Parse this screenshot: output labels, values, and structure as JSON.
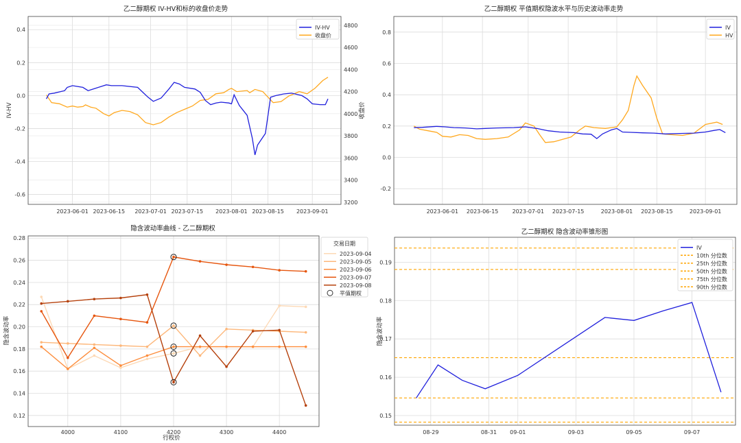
{
  "colors": {
    "iv": "#1f1fdc",
    "hv": "#ffa81e",
    "close": "#ffa81e",
    "left_axis": "#2c7bb6",
    "right_axis": "#d62728",
    "orange": "#ffa500",
    "curve_0904": "#fdd9b5",
    "curve_0905": "#fdb77a",
    "curve_0906": "#fd8d3c",
    "curve_0907": "#e6550d",
    "curve_0908": "#b5400b"
  },
  "chart_data": [
    {
      "type": "line",
      "title": "乙二醇期权 IV-HV和标的收盘价走势",
      "xlabel": "",
      "ylabel": "IV-HV",
      "y2label": "收盘价",
      "xlim": [
        "2023-05-15",
        "2023-09-12"
      ],
      "ylim": [
        -0.66,
        0.48
      ],
      "y2lim": [
        3180,
        4880
      ],
      "grid": true,
      "legend_position": "top-right",
      "x_ticks": [
        "2023-06-01",
        "2023-06-15",
        "2023-07-01",
        "2023-07-15",
        "2023-08-01",
        "2023-08-15",
        "2023-09-01"
      ],
      "y_ticks": [
        -0.6,
        -0.4,
        -0.2,
        0.0,
        0.2,
        0.4
      ],
      "y2_ticks": [
        3200,
        3400,
        3600,
        3800,
        4000,
        4200,
        4400,
        4600,
        4800
      ],
      "series": [
        {
          "name": "IV-HV",
          "axis": "left",
          "points": [
            [
              "2023-05-22",
              -0.02
            ],
            [
              "2023-05-23",
              0.01
            ],
            [
              "2023-05-25",
              0.015
            ],
            [
              "2023-05-29",
              0.03
            ],
            [
              "2023-05-30",
              0.05
            ],
            [
              "2023-06-01",
              0.06
            ],
            [
              "2023-06-05",
              0.05
            ],
            [
              "2023-06-07",
              0.03
            ],
            [
              "2023-06-08",
              0.035
            ],
            [
              "2023-06-12",
              0.055
            ],
            [
              "2023-06-14",
              0.065
            ],
            [
              "2023-06-16",
              0.06
            ],
            [
              "2023-06-20",
              0.06
            ],
            [
              "2023-06-26",
              0.05
            ],
            [
              "2023-06-28",
              0.02
            ],
            [
              "2023-06-30",
              -0.01
            ],
            [
              "2023-07-02",
              -0.035
            ],
            [
              "2023-07-05",
              -0.015
            ],
            [
              "2023-07-08",
              0.04
            ],
            [
              "2023-07-10",
              0.08
            ],
            [
              "2023-07-12",
              0.07
            ],
            [
              "2023-07-14",
              0.05
            ],
            [
              "2023-07-18",
              0.04
            ],
            [
              "2023-07-20",
              0.02
            ],
            [
              "2023-07-22",
              -0.03
            ],
            [
              "2023-07-24",
              -0.055
            ],
            [
              "2023-07-26",
              -0.045
            ],
            [
              "2023-07-28",
              -0.04
            ],
            [
              "2023-07-31",
              -0.045
            ],
            [
              "2023-08-01",
              -0.05
            ],
            [
              "2023-08-02",
              0.005
            ],
            [
              "2023-08-04",
              -0.06
            ],
            [
              "2023-08-07",
              -0.12
            ],
            [
              "2023-08-09",
              -0.26
            ],
            [
              "2023-08-10",
              -0.36
            ],
            [
              "2023-08-11",
              -0.3
            ],
            [
              "2023-08-14",
              -0.23
            ],
            [
              "2023-08-16",
              -0.01
            ],
            [
              "2023-08-18",
              0.0
            ],
            [
              "2023-08-21",
              0.01
            ],
            [
              "2023-08-24",
              0.015
            ],
            [
              "2023-08-28",
              0.0
            ],
            [
              "2023-08-30",
              -0.02
            ],
            [
              "2023-09-01",
              -0.05
            ],
            [
              "2023-09-04",
              -0.055
            ],
            [
              "2023-09-06",
              -0.055
            ],
            [
              "2023-09-07",
              -0.02
            ]
          ]
        },
        {
          "name": "收盘价",
          "axis": "right",
          "points": [
            [
              "2023-05-22",
              4170
            ],
            [
              "2023-05-24",
              4100
            ],
            [
              "2023-05-27",
              4090
            ],
            [
              "2023-05-30",
              4060
            ],
            [
              "2023-06-01",
              4070
            ],
            [
              "2023-06-03",
              4060
            ],
            [
              "2023-06-05",
              4065
            ],
            [
              "2023-06-06",
              4080
            ],
            [
              "2023-06-08",
              4060
            ],
            [
              "2023-06-10",
              4050
            ],
            [
              "2023-06-13",
              4000
            ],
            [
              "2023-06-15",
              3980
            ],
            [
              "2023-06-17",
              4010
            ],
            [
              "2023-06-20",
              4030
            ],
            [
              "2023-06-23",
              4020
            ],
            [
              "2023-06-26",
              3990
            ],
            [
              "2023-06-29",
              3920
            ],
            [
              "2023-07-02",
              3900
            ],
            [
              "2023-07-05",
              3920
            ],
            [
              "2023-07-08",
              3970
            ],
            [
              "2023-07-11",
              4010
            ],
            [
              "2023-07-14",
              4040
            ],
            [
              "2023-07-17",
              4070
            ],
            [
              "2023-07-20",
              4120
            ],
            [
              "2023-07-23",
              4130
            ],
            [
              "2023-07-26",
              4180
            ],
            [
              "2023-07-29",
              4190
            ],
            [
              "2023-07-31",
              4220
            ],
            [
              "2023-08-01",
              4230
            ],
            [
              "2023-08-03",
              4200
            ],
            [
              "2023-08-07",
              4210
            ],
            [
              "2023-08-08",
              4190
            ],
            [
              "2023-08-10",
              4220
            ],
            [
              "2023-08-13",
              4200
            ],
            [
              "2023-08-15",
              4150
            ],
            [
              "2023-08-17",
              4100
            ],
            [
              "2023-08-20",
              4110
            ],
            [
              "2023-08-23",
              4160
            ],
            [
              "2023-08-27",
              4200
            ],
            [
              "2023-08-30",
              4180
            ],
            [
              "2023-09-02",
              4230
            ],
            [
              "2023-09-05",
              4300
            ],
            [
              "2023-09-07",
              4330
            ]
          ]
        }
      ]
    },
    {
      "type": "line",
      "title": "乙二醇期权 平值期权隐波水平与历史波动率走势",
      "xlabel": "",
      "ylabel": "",
      "xlim": [
        "2023-05-15",
        "2023-09-12"
      ],
      "ylim": [
        -0.3,
        0.9
      ],
      "grid": true,
      "legend_position": "top-right",
      "x_ticks": [
        "2023-06-01",
        "2023-06-15",
        "2023-07-01",
        "2023-07-15",
        "2023-08-01",
        "2023-08-15",
        "2023-09-01"
      ],
      "y_ticks": [
        -0.2,
        0.0,
        0.2,
        0.4,
        0.6,
        0.8
      ],
      "series": [
        {
          "name": "IV",
          "points": [
            [
              "2023-05-22",
              0.19
            ],
            [
              "2023-05-25",
              0.192
            ],
            [
              "2023-05-30",
              0.198
            ],
            [
              "2023-06-02",
              0.195
            ],
            [
              "2023-06-05",
              0.19
            ],
            [
              "2023-06-09",
              0.188
            ],
            [
              "2023-06-13",
              0.182
            ],
            [
              "2023-06-16",
              0.185
            ],
            [
              "2023-06-20",
              0.188
            ],
            [
              "2023-06-26",
              0.19
            ],
            [
              "2023-06-30",
              0.195
            ],
            [
              "2023-07-04",
              0.185
            ],
            [
              "2023-07-08",
              0.17
            ],
            [
              "2023-07-12",
              0.162
            ],
            [
              "2023-07-17",
              0.158
            ],
            [
              "2023-07-20",
              0.15
            ],
            [
              "2023-07-23",
              0.148
            ],
            [
              "2023-07-25",
              0.12
            ],
            [
              "2023-07-27",
              0.15
            ],
            [
              "2023-07-30",
              0.175
            ],
            [
              "2023-08-01",
              0.185
            ],
            [
              "2023-08-03",
              0.162
            ],
            [
              "2023-08-06",
              0.16
            ],
            [
              "2023-08-10",
              0.157
            ],
            [
              "2023-08-14",
              0.155
            ],
            [
              "2023-08-18",
              0.15
            ],
            [
              "2023-08-23",
              0.153
            ],
            [
              "2023-08-28",
              0.155
            ],
            [
              "2023-09-01",
              0.162
            ],
            [
              "2023-09-04",
              0.172
            ],
            [
              "2023-09-06",
              0.178
            ],
            [
              "2023-09-08",
              0.158
            ]
          ]
        },
        {
          "name": "HV",
          "points": [
            [
              "2023-05-22",
              0.2
            ],
            [
              "2023-05-24",
              0.18
            ],
            [
              "2023-05-27",
              0.17
            ],
            [
              "2023-05-30",
              0.16
            ],
            [
              "2023-06-01",
              0.135
            ],
            [
              "2023-06-04",
              0.13
            ],
            [
              "2023-06-07",
              0.145
            ],
            [
              "2023-06-10",
              0.14
            ],
            [
              "2023-06-13",
              0.12
            ],
            [
              "2023-06-16",
              0.115
            ],
            [
              "2023-06-20",
              0.12
            ],
            [
              "2023-06-24",
              0.13
            ],
            [
              "2023-06-28",
              0.175
            ],
            [
              "2023-06-30",
              0.22
            ],
            [
              "2023-07-03",
              0.2
            ],
            [
              "2023-07-05",
              0.145
            ],
            [
              "2023-07-07",
              0.095
            ],
            [
              "2023-07-10",
              0.1
            ],
            [
              "2023-07-13",
              0.115
            ],
            [
              "2023-07-16",
              0.13
            ],
            [
              "2023-07-19",
              0.175
            ],
            [
              "2023-07-21",
              0.2
            ],
            [
              "2023-07-24",
              0.19
            ],
            [
              "2023-07-28",
              0.185
            ],
            [
              "2023-08-01",
              0.195
            ],
            [
              "2023-08-03",
              0.24
            ],
            [
              "2023-08-05",
              0.3
            ],
            [
              "2023-08-07",
              0.46
            ],
            [
              "2023-08-08",
              0.52
            ],
            [
              "2023-08-10",
              0.46
            ],
            [
              "2023-08-13",
              0.38
            ],
            [
              "2023-08-15",
              0.25
            ],
            [
              "2023-08-17",
              0.15
            ],
            [
              "2023-08-20",
              0.145
            ],
            [
              "2023-08-24",
              0.14
            ],
            [
              "2023-08-28",
              0.155
            ],
            [
              "2023-09-01",
              0.21
            ],
            [
              "2023-09-05",
              0.225
            ],
            [
              "2023-09-07",
              0.21
            ]
          ]
        }
      ]
    },
    {
      "type": "line",
      "title": "隐含波动率曲线 - 乙二醇期权",
      "xlabel": "行权价",
      "ylabel": "隐含波动率",
      "xlim": [
        3925,
        4475
      ],
      "ylim": [
        0.11,
        0.282
      ],
      "grid": true,
      "legend_position": "top-right",
      "legend_title": "交易日期",
      "atm_label": "平值期权",
      "x_ticks": [
        4000,
        4100,
        4200,
        4300,
        4400
      ],
      "y_ticks": [
        0.12,
        0.14,
        0.16,
        0.18,
        0.2,
        0.22,
        0.24,
        0.26,
        0.28
      ],
      "strikes": [
        3950,
        4000,
        4050,
        4100,
        4150,
        4200,
        4250,
        4300,
        4350,
        4400,
        4450
      ],
      "atm_strike": 4200,
      "series": [
        {
          "name": "2023-09-04",
          "values": [
            0.227,
            0.162,
            0.174,
            0.163,
            0.171,
            0.176,
            0.182,
            0.182,
            0.182,
            0.219,
            0.218
          ]
        },
        {
          "name": "2023-09-05",
          "values": [
            0.186,
            0.185,
            0.184,
            0.183,
            0.182,
            0.201,
            0.174,
            0.198,
            0.197,
            0.196,
            0.195
          ]
        },
        {
          "name": "2023-09-06",
          "values": [
            0.182,
            0.162,
            0.181,
            0.165,
            0.174,
            0.182,
            0.182,
            0.182,
            0.182,
            0.182,
            0.182
          ]
        },
        {
          "name": "2023-09-07",
          "values": [
            0.214,
            0.172,
            0.21,
            0.207,
            0.204,
            0.263,
            0.259,
            0.256,
            0.254,
            0.251,
            0.25
          ]
        },
        {
          "name": "2023-09-08",
          "values": [
            0.221,
            0.223,
            0.225,
            0.226,
            0.229,
            0.15,
            0.192,
            0.164,
            0.196,
            0.197,
            0.129
          ]
        }
      ]
    },
    {
      "type": "line",
      "title": "乙二醇期权 隐含波动率锥形图",
      "xlabel": "",
      "ylabel": "隐含波动率",
      "xlim": [
        "2023-08-27 18:00",
        "2023-09-08 12:00"
      ],
      "ylim": [
        0.1475,
        0.1965
      ],
      "grid": true,
      "legend_position": "top-right",
      "x_ticks": [
        "08-29",
        "08-31",
        "09-01",
        "09-03",
        "09-05",
        "09-07"
      ],
      "x_tick_dates": [
        "2023-08-29",
        "2023-08-31",
        "2023-09-01",
        "2023-09-03",
        "2023-09-05",
        "2023-09-07"
      ],
      "y_ticks": [
        0.15,
        0.16,
        0.17,
        0.18,
        0.19
      ],
      "series": [
        {
          "name": "IV",
          "points": [
            [
              "2023-08-28 12:00",
              0.1546
            ],
            [
              "2023-08-29 06:00",
              0.1632
            ],
            [
              "2023-08-30 02:00",
              0.1592
            ],
            [
              "2023-08-30 21:00",
              0.157
            ],
            [
              "2023-09-01 00:00",
              0.1605
            ],
            [
              "2023-09-04 00:00",
              0.1756
            ],
            [
              "2023-09-05 00:00",
              0.1748
            ],
            [
              "2023-09-06 00:00",
              0.1773
            ],
            [
              "2023-09-07 00:00",
              0.1795
            ],
            [
              "2023-09-08 00:00",
              0.1561
            ]
          ]
        }
      ],
      "percentiles": [
        {
          "name": "10th 分位数",
          "value": 0.1483
        },
        {
          "name": "25th 分位数",
          "value": 0.1546
        },
        {
          "name": "50th 分位数",
          "value": 0.1651
        },
        {
          "name": "75th 分位数",
          "value": 0.1881
        },
        {
          "name": "90th 分位数",
          "value": 0.1937
        }
      ]
    }
  ]
}
